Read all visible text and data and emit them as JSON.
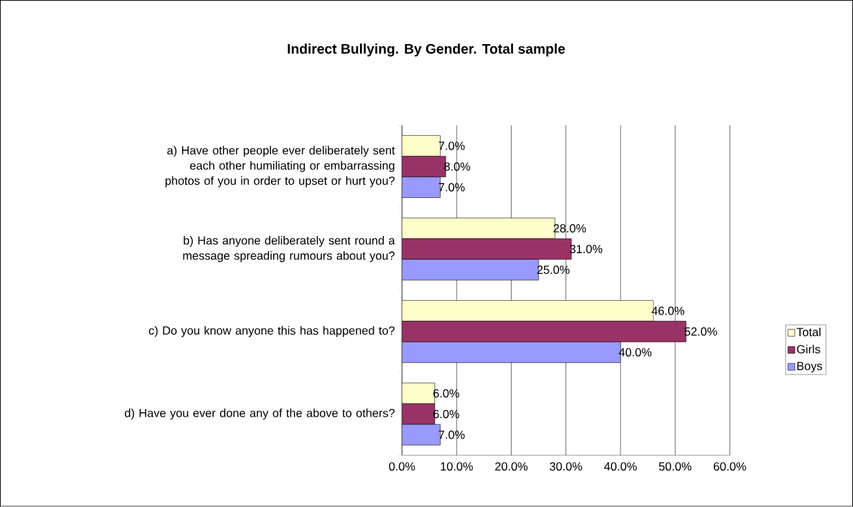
{
  "chart_data": {
    "type": "bar",
    "orientation": "horizontal",
    "title": "Indirect Bullying. By Gender. Total sample",
    "categories": [
      "a)  Have other people ever deliberately sent each other humiliating or embarrassing photos of you in order to upset or hurt you?",
      "b)  Has anyone deliberately sent round a message spreading rumours about you?",
      "c)  Do you know anyone this has happened to?",
      "d)  Have you ever done any of the above to others?"
    ],
    "series": [
      {
        "name": "Total",
        "color": "#ffffcc",
        "values": [
          7,
          28,
          46,
          6
        ],
        "value_labels": [
          "7.0%",
          "28.0%",
          "46.0%",
          "6.0%"
        ]
      },
      {
        "name": "Girls",
        "color": "#993366",
        "values": [
          8,
          31,
          52,
          6
        ],
        "value_labels": [
          "8.0%",
          "31.0%",
          "52.0%",
          "6.0%"
        ]
      },
      {
        "name": "Boys",
        "color": "#9999ff",
        "values": [
          7,
          25,
          40,
          7
        ],
        "value_labels": [
          "7.0%",
          "25.0%",
          "40.0%",
          "7.0%"
        ]
      }
    ],
    "xlim": [
      0,
      60
    ],
    "xticks": [
      {
        "value": 0,
        "label": "0.0%"
      },
      {
        "value": 10,
        "label": "10.0%"
      },
      {
        "value": 20,
        "label": "20.0%"
      },
      {
        "value": 30,
        "label": "30.0%"
      },
      {
        "value": 40,
        "label": "40.0%"
      },
      {
        "value": 50,
        "label": "50.0%"
      },
      {
        "value": 60,
        "label": "60.0%"
      }
    ],
    "grid": "x",
    "legend": "right"
  }
}
